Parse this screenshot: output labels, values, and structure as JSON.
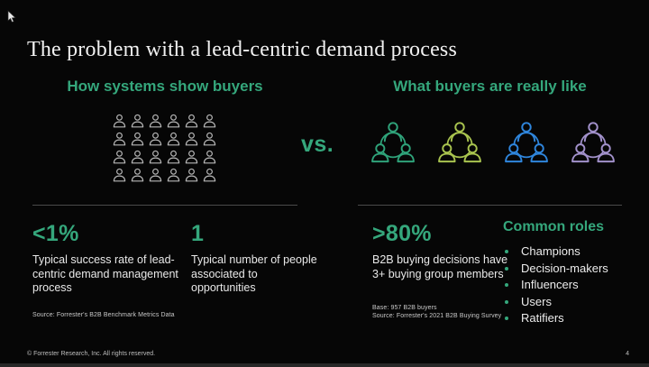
{
  "slide": {
    "title": "The problem with a lead-centric demand process",
    "vs_label": "vs.",
    "left_section": {
      "heading": "How systems show buyers",
      "grid": {
        "rows": 4,
        "cols": 6,
        "icon_color": "#b7b7b7"
      }
    },
    "right_section": {
      "heading": "What buyers are really like",
      "group_colors": [
        "#2fa37a",
        "#a9c44f",
        "#2f86dd",
        "#a291cb"
      ]
    },
    "stats_left": [
      {
        "value": "<1%",
        "description": "Typical success rate of lead-centric demand management process"
      },
      {
        "value": "1",
        "description": "Typical number of people associated to opportunities"
      }
    ],
    "stats_left_source": "Source: Forrester's B2B Benchmark Metrics Data",
    "stat_right": {
      "value": ">80%",
      "description": "B2B buying decisions have 3+ buying group members"
    },
    "stats_right_base": "Base: 957 B2B buyers",
    "stats_right_source": "Source: Forrester's 2021 B2B Buying Survey",
    "roles": {
      "heading": "Common roles",
      "items": [
        "Champions",
        "Decision-makers",
        "Influencers",
        "Users",
        "Ratifiers"
      ]
    },
    "footer": {
      "copyright": "© Forrester Research, Inc. All rights reserved.",
      "page_number": "4"
    },
    "colors": {
      "accent_green": "#35a77c",
      "background": "#060606",
      "divider": "#4a4a4a"
    }
  }
}
